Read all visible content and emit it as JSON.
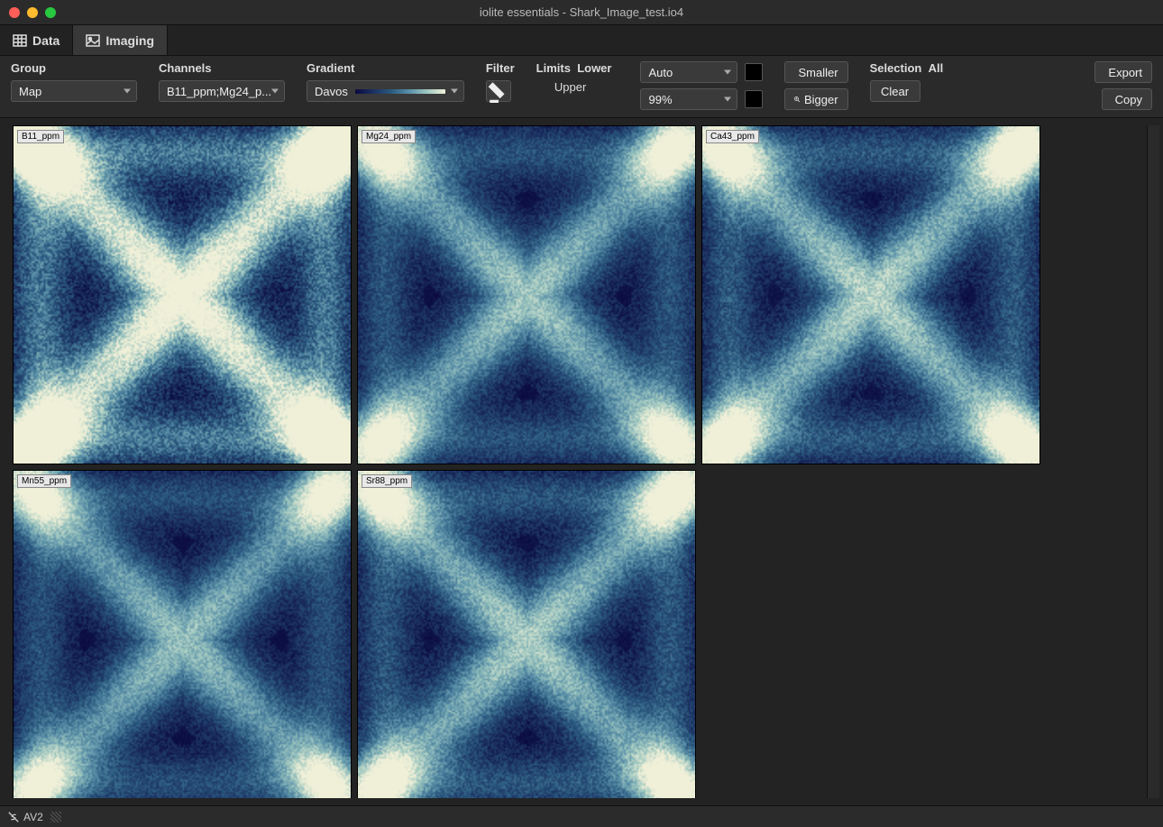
{
  "window": {
    "title": "iolite essentials - Shark_Image_test.io4"
  },
  "tabs": {
    "data": "Data",
    "imaging": "Imaging",
    "active": "imaging"
  },
  "toolbar": {
    "group": {
      "label": "Group",
      "value": "Map"
    },
    "channels": {
      "label": "Channels",
      "value": "B11_ppm;Mg24_p..."
    },
    "gradient": {
      "label": "Gradient",
      "value": "Davos",
      "stops": [
        "#0a0a40",
        "#1b3060",
        "#2b5a80",
        "#5a90a8",
        "#a0c8c0",
        "#f0f0d8"
      ]
    },
    "filter": {
      "label": "Filter"
    },
    "limits": {
      "label": "Limits",
      "lower_label": "Lower",
      "upper_label": "Upper",
      "lower_value": "Auto",
      "upper_value": "99%",
      "swatch_lower": "#000000",
      "swatch_upper": "#000000"
    },
    "smaller": "Smaller",
    "bigger": "Bigger",
    "selection": {
      "label": "Selection",
      "value": "All",
      "clear": "Clear"
    },
    "export": "Export",
    "copy": "Copy"
  },
  "panels": [
    {
      "label": "B11_ppm",
      "seed": 11,
      "dark_tint": 0.1
    },
    {
      "label": "Mg24_ppm",
      "seed": 24,
      "dark_tint": 0.7
    },
    {
      "label": "Ca43_ppm",
      "seed": 43,
      "dark_tint": 0.6
    },
    {
      "label": "Mn55_ppm",
      "seed": 55,
      "dark_tint": 0.75
    },
    {
      "label": "Sr88_ppm",
      "seed": 88,
      "dark_tint": 0.65
    }
  ],
  "statusbar": {
    "profile": "AV2"
  },
  "colors": {
    "bg": "#1e1e1e",
    "panel_bg": "#232323",
    "control_bg": "#3a3a3a",
    "border": "#555555",
    "text": "#dddddd"
  }
}
